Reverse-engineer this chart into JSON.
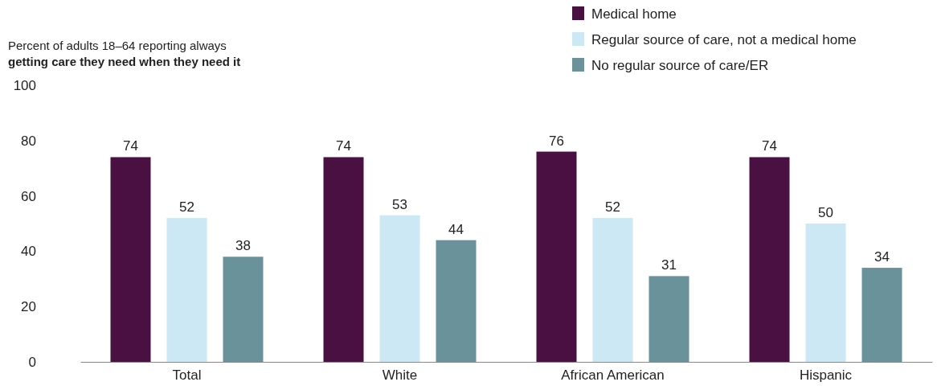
{
  "chart_data": {
    "type": "bar",
    "title": "Percent of adults 18–64 reporting always getting care they need when they need it",
    "categories": [
      "Total",
      "White",
      "African American",
      "Hispanic"
    ],
    "series": [
      {
        "name": "Medical home",
        "color": "#4a1042",
        "values": [
          74,
          74,
          76,
          74
        ]
      },
      {
        "name": "Regular source of care, not a medical home",
        "color": "#cce8f4",
        "values": [
          52,
          53,
          52,
          50
        ]
      },
      {
        "name": "No regular source of care/ER",
        "color": "#6a929b",
        "values": [
          38,
          44,
          31,
          34
        ]
      }
    ],
    "ylim": [
      0,
      100
    ],
    "yticks": [
      0,
      20,
      40,
      60,
      80,
      100
    ],
    "data_labels": true,
    "legend": "top right",
    "grid": false
  }
}
